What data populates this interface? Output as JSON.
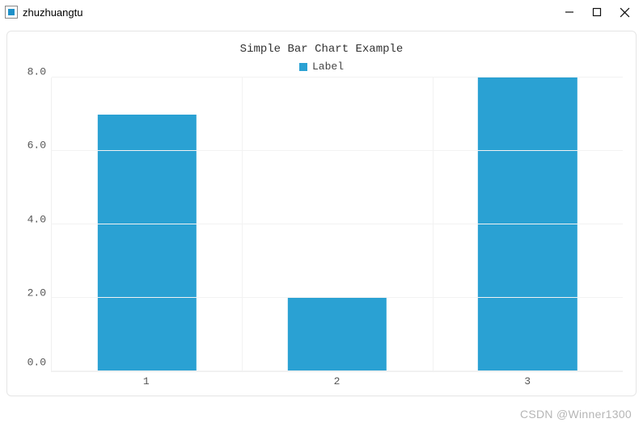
{
  "window": {
    "title": "zhuzhuangtu",
    "icon_color": "#1e90c8",
    "control_color": "#111111"
  },
  "chart": {
    "type": "bar",
    "title": "Simple Bar Chart Example",
    "title_fontsize": 14,
    "title_color": "#333333",
    "legend": {
      "label": "Label",
      "swatch_color": "#2aa1d3",
      "text_color": "#444444"
    },
    "background_color": "#ffffff",
    "card_border_color": "#e5e5e5",
    "grid_color": "#f2f2f2",
    "axis_text_color": "#555555",
    "axis_fontsize": 13,
    "bar_color": "#2aa1d3",
    "bar_width_pct": 52,
    "y": {
      "min": 0.0,
      "max": 8.0,
      "ticks": [
        "8.0",
        "6.0",
        "4.0",
        "2.0",
        "0.0"
      ]
    },
    "x": {
      "categories": [
        "1",
        "2",
        "3"
      ]
    },
    "values": [
      7,
      2,
      8
    ]
  },
  "watermark": "CSDN @Winner1300"
}
